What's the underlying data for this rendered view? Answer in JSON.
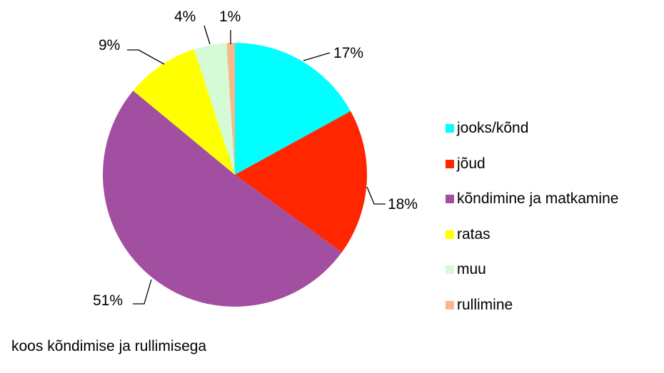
{
  "chart_data": {
    "type": "pie",
    "title": "",
    "start": "top",
    "direction": "clockwise",
    "legend_position": "right",
    "slices": [
      {
        "name": "jooks/kõnd",
        "value": 17,
        "label": "17%",
        "color": "#00FFFF"
      },
      {
        "name": "jõud",
        "value": 18,
        "label": "18%",
        "color": "#FF2600"
      },
      {
        "name": "kõndimine ja matkamine",
        "value": 51,
        "label": "51%",
        "color": "#A34FA1"
      },
      {
        "name": "ratas",
        "value": 9,
        "label": "9%",
        "color": "#FFFF00"
      },
      {
        "name": "muu",
        "value": 4,
        "label": "4%",
        "color": "#D4FAD6"
      },
      {
        "name": "rullimine",
        "value": 1,
        "label": "1%",
        "color": "#F9B78A"
      }
    ]
  },
  "caption": "koos kõndimise ja rullimisega"
}
